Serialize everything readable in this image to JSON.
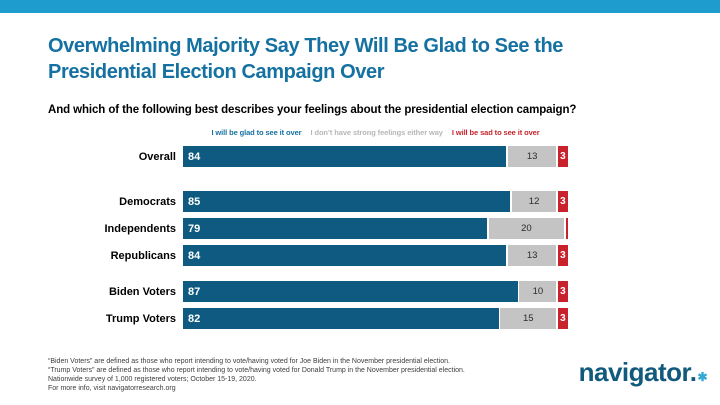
{
  "colors": {
    "accent_bar": "#1E9CCD",
    "title_text": "#1571A1",
    "glad_bar": "#0E5A80",
    "neutral_bar": "#C4C4C4",
    "sad_bar": "#C8232C",
    "logo_text": "#125A7D",
    "logo_star": "#33A9D6"
  },
  "header": {
    "title_line1": "Overwhelming Majority Say They Will Be Glad to See the",
    "title_line2": "Presidential Election Campaign Over",
    "question": "And which of the following best describes your feelings about the presidential election campaign?"
  },
  "chart_data": {
    "type": "bar",
    "orientation": "horizontal-stacked",
    "title": "Overwhelming Majority Say They Will Be Glad to See the Presidential Election Campaign Over",
    "xlabel": "",
    "ylabel": "",
    "xlim": [
      0,
      100
    ],
    "unit": "percent",
    "grid": false,
    "legend_position": "top",
    "legend": [
      {
        "label": "I will be glad to see it over",
        "color": "#1571A1"
      },
      {
        "label": "I don’t have strong feelings either way",
        "color": "#B7B7B7"
      },
      {
        "label": "I will be sad to see it over",
        "color": "#C8232C"
      }
    ],
    "series_names": [
      "I will be glad to see it over",
      "I don’t have strong feelings either way",
      "I will be sad to see it over"
    ],
    "groups": [
      {
        "rows": [
          {
            "label": "Overall",
            "glad": 84,
            "neutral": 13,
            "sad": 3
          }
        ]
      },
      {
        "rows": [
          {
            "label": "Democrats",
            "glad": 85,
            "neutral": 12,
            "sad": 3
          },
          {
            "label": "Independents",
            "glad": 79,
            "neutral": 20,
            "sad": 1
          },
          {
            "label": "Republicans",
            "glad": 84,
            "neutral": 13,
            "sad": 3
          }
        ]
      },
      {
        "rows": [
          {
            "label": "Biden Voters",
            "glad": 87,
            "neutral": 10,
            "sad": 3
          },
          {
            "label": "Trump Voters",
            "glad": 82,
            "neutral": 15,
            "sad": 3
          }
        ]
      }
    ]
  },
  "footnote": {
    "lines": [
      "“Biden Voters” are defined as those who report intending to vote/having voted for Joe Biden in the November presidential election.",
      "“Trump Voters” are defined as those who report intending to vote/having voted for Donald Trump in the November presidential election.",
      "Nationwide survey of 1,000 registered voters; October 15-19, 2020.",
      "For more info, visit navigatorresearch.org"
    ]
  },
  "logo": {
    "text": "navigator.",
    "star": "✱"
  }
}
